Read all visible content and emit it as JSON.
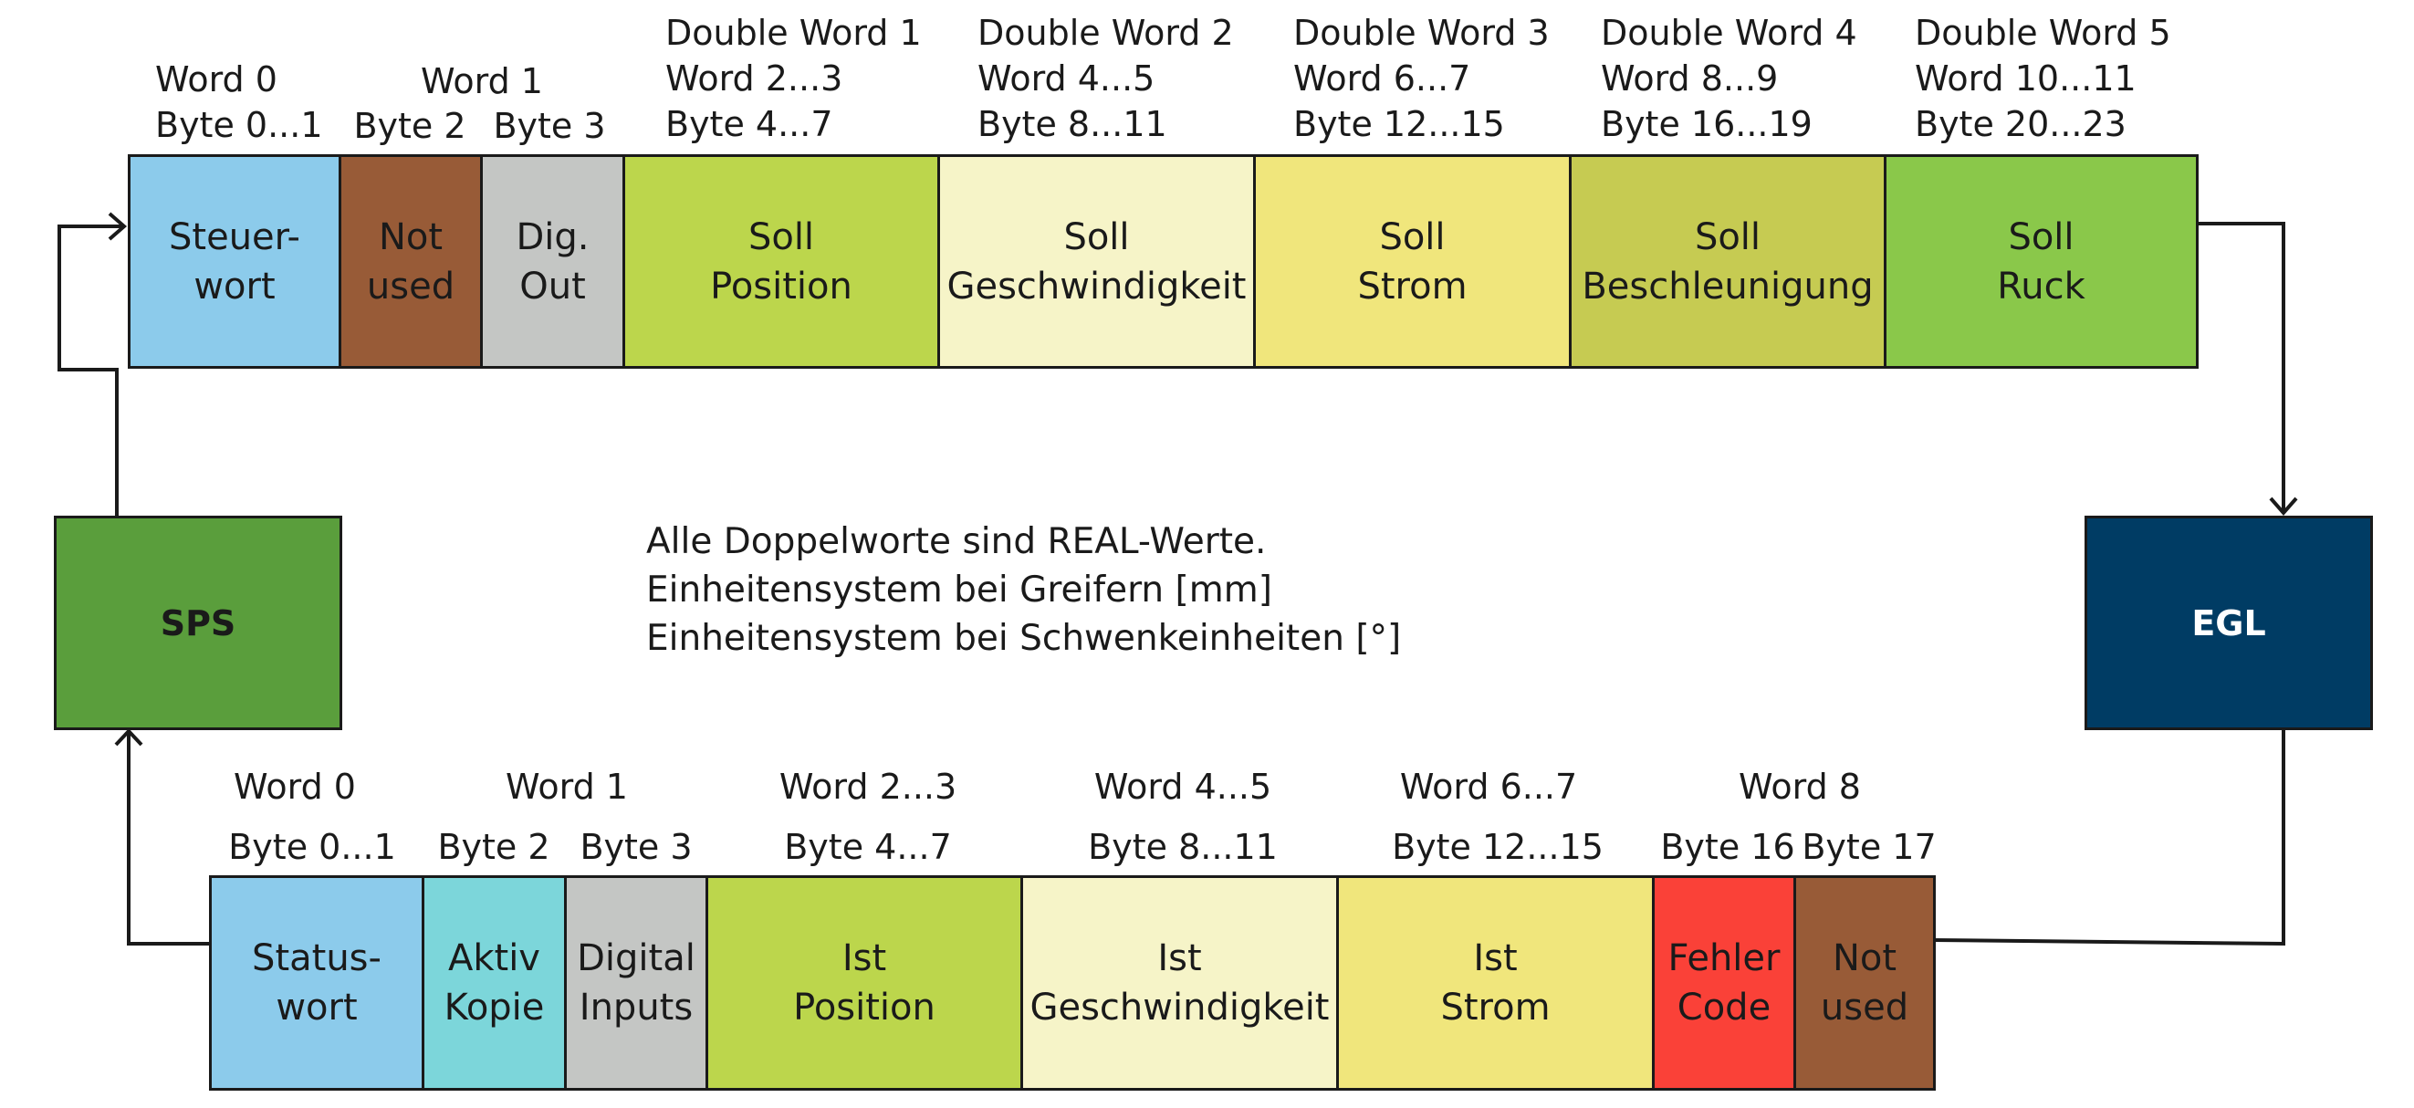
{
  "controller_label": "SPS",
  "gripper_label": "EGL",
  "colors": {
    "sps": "#5a9e3c",
    "egl": "#003c64",
    "light_blue": "#8ccbeb",
    "brown": "#985b37",
    "gray": "#c4c6c4",
    "lime": "#bcd64c",
    "pale_yellow": "#f6f4c8",
    "yellow": "#f0e67c",
    "olive": "#c6cb52",
    "green": "#8ac84a",
    "cyan": "#7cd6da",
    "red": "#fa4138"
  },
  "note_lines": [
    "Alle Doppelworte sind REAL-Werte.",
    "Einheitensystem bei Greifern [mm]",
    "Einheitensystem bei Schwenkeinheiten [°]"
  ],
  "output_row": {
    "headers": {
      "word0": [
        "Word 0",
        "Byte 0...1"
      ],
      "word1": "Word 1",
      "byte2": "Byte 2",
      "byte3": "Byte 3",
      "dw1": [
        "Double Word 1",
        "Word 2...3",
        "Byte 4...7"
      ],
      "dw2": [
        "Double Word 2",
        "Word 4...5",
        "Byte 8...11"
      ],
      "dw3": [
        "Double Word 3",
        "Word 6...7",
        "Byte 12...15"
      ],
      "dw4": [
        "Double Word 4",
        "Word 8...9",
        "Byte 16...19"
      ],
      "dw5": [
        "Double Word 5",
        "Word 10...11",
        "Byte 20...23"
      ]
    },
    "cells": [
      {
        "lines": [
          "Steuer-",
          "wort"
        ],
        "color": "#8ccbeb"
      },
      {
        "lines": [
          "Not",
          "used"
        ],
        "color": "#985b37"
      },
      {
        "lines": [
          "Dig.",
          "Out"
        ],
        "color": "#c4c6c4"
      },
      {
        "lines": [
          "Soll",
          "Position"
        ],
        "color": "#bcd64c"
      },
      {
        "lines": [
          "Soll",
          "Geschwindigkeit"
        ],
        "color": "#f6f4c8"
      },
      {
        "lines": [
          "Soll",
          "Strom"
        ],
        "color": "#f0e67c"
      },
      {
        "lines": [
          "Soll",
          "Beschleunigung"
        ],
        "color": "#c6cb52"
      },
      {
        "lines": [
          "Soll",
          "Ruck"
        ],
        "color": "#8ac84a"
      }
    ]
  },
  "input_row": {
    "headers": {
      "word0": "Word 0",
      "word1": "Word 1",
      "word23": "Word 2...3",
      "word45": "Word 4...5",
      "word67": "Word 6...7",
      "word8": "Word 8",
      "byte01": "Byte 0...1",
      "byte2": "Byte 2",
      "byte3": "Byte 3",
      "byte47": "Byte 4...7",
      "byte811": "Byte 8...11",
      "byte1215": "Byte 12...15",
      "byte16": "Byte 16",
      "byte17": "Byte 17"
    },
    "cells": [
      {
        "lines": [
          "Status-",
          "wort"
        ],
        "color": "#8ccbeb"
      },
      {
        "lines": [
          "Aktiv",
          "Kopie"
        ],
        "color": "#7cd6da"
      },
      {
        "lines": [
          "Digital",
          "Inputs"
        ],
        "color": "#c4c6c4"
      },
      {
        "lines": [
          "Ist",
          "Position"
        ],
        "color": "#bcd64c"
      },
      {
        "lines": [
          "Ist",
          "Geschwindigkeit"
        ],
        "color": "#f6f4c8"
      },
      {
        "lines": [
          "Ist",
          "Strom"
        ],
        "color": "#f0e67c"
      },
      {
        "lines": [
          "Fehler",
          "Code"
        ],
        "color": "#fa4138"
      },
      {
        "lines": [
          "Not",
          "used"
        ],
        "color": "#985b37"
      }
    ]
  }
}
